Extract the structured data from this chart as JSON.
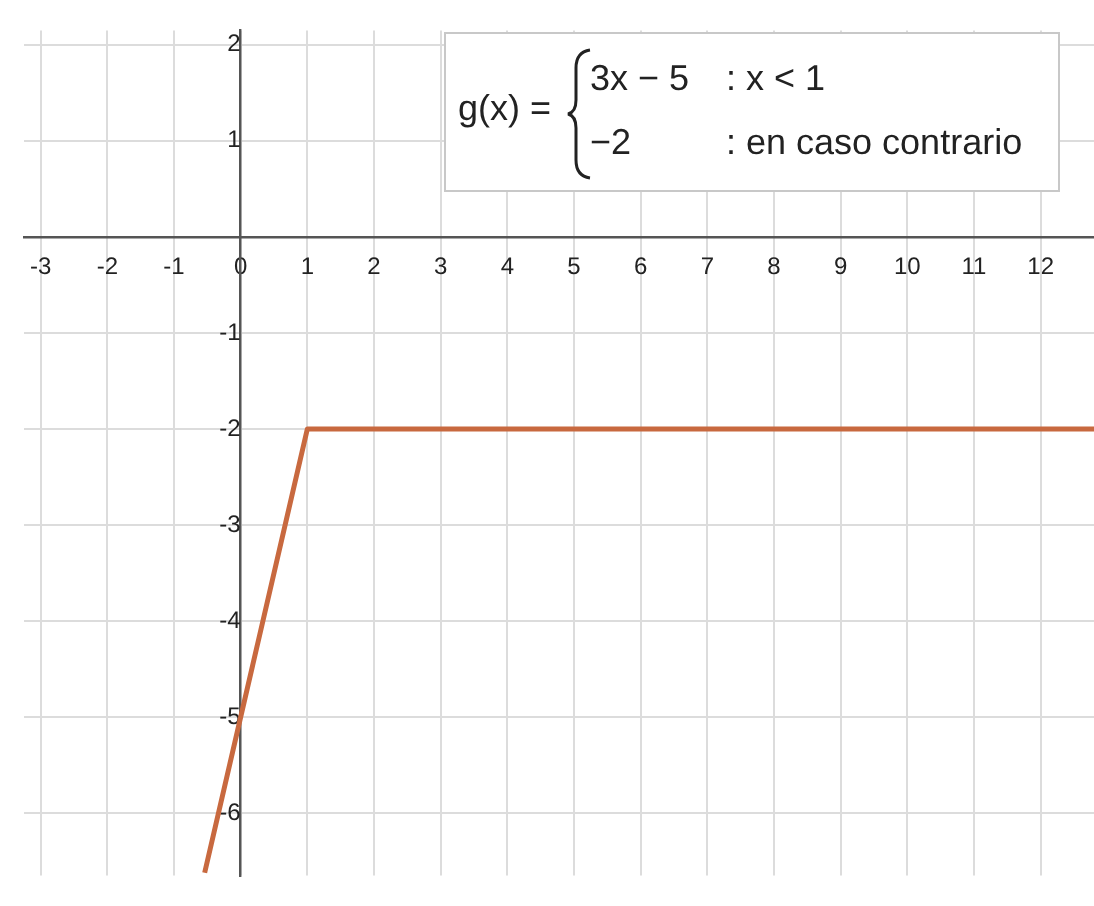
{
  "chart_data": {
    "type": "line",
    "x": [
      -0.54,
      1,
      12.8
    ],
    "values": [
      -6.62,
      -2,
      -2
    ],
    "color": "#c8693f",
    "xlim": [
      -3.25,
      12.8
    ],
    "ylim": [
      -6.65,
      2.15
    ],
    "xticks": [
      -3,
      -2,
      -1,
      0,
      1,
      2,
      3,
      4,
      5,
      6,
      7,
      8,
      9,
      10,
      11,
      12
    ],
    "yticks": [
      2,
      1,
      {
        "value": 0,
        "label": null
      },
      -1,
      -2,
      -3,
      -4,
      -5,
      -6
    ],
    "grid": true,
    "legend": false,
    "marker": "none",
    "line_style": "solid",
    "annotations": [
      "g(x) =",
      "3x − 5",
      ": x < 1",
      "−2",
      ": en caso contrario"
    ]
  }
}
